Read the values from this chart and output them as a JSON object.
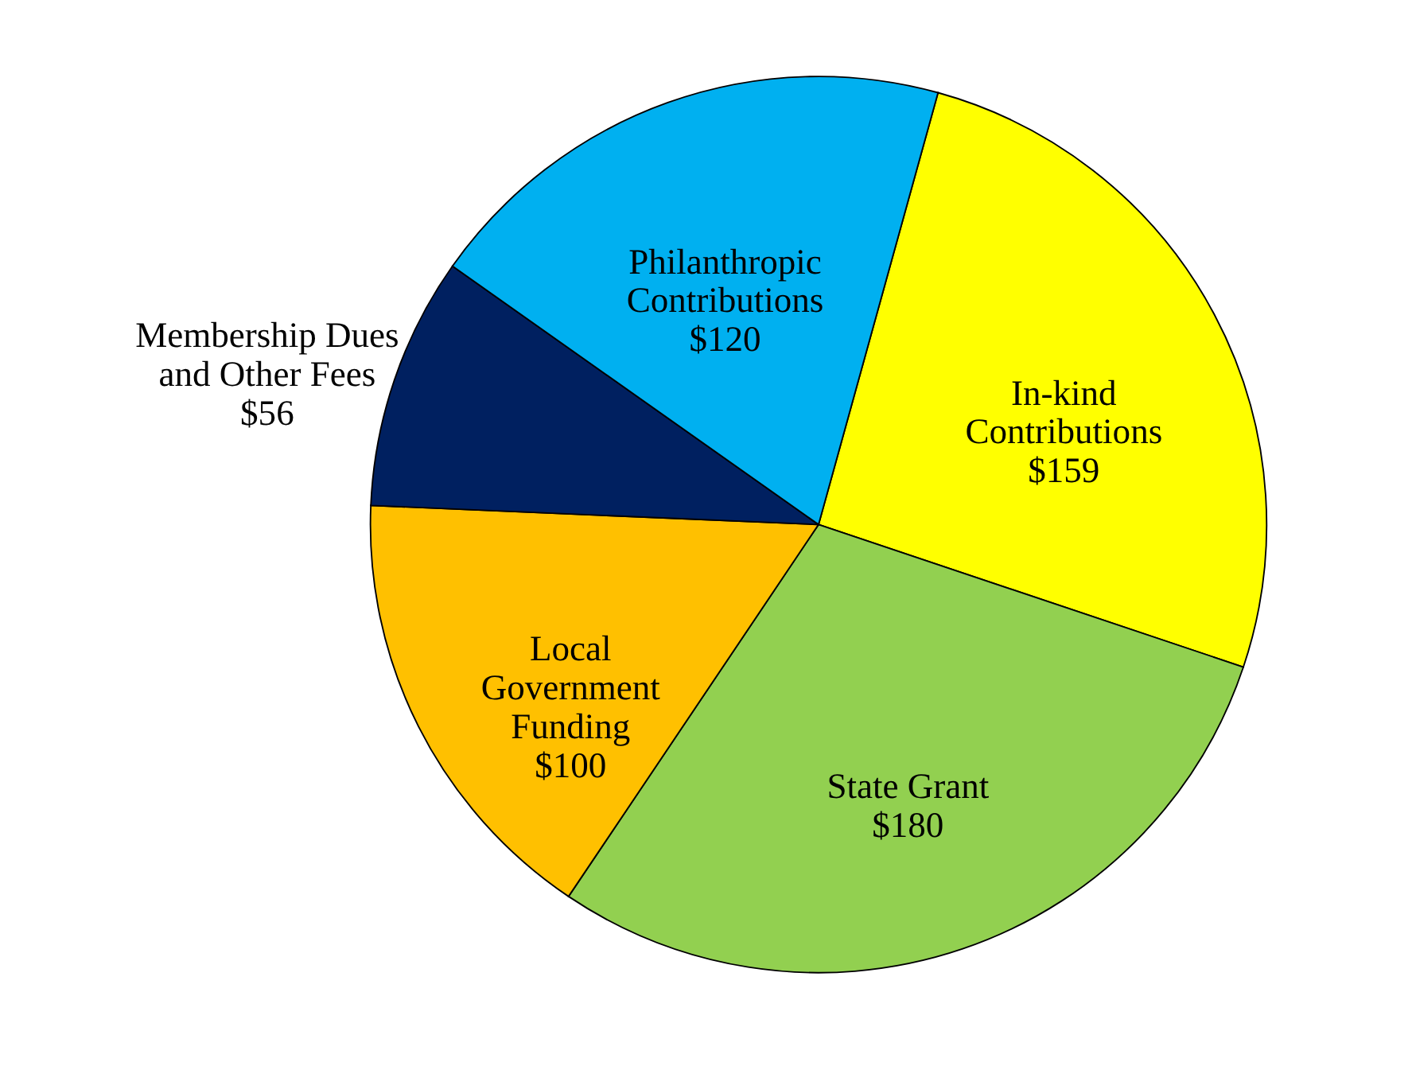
{
  "chart_data": {
    "type": "pie",
    "categories": [
      "In-kind\nContributions",
      "State Grant",
      "Local\nGovernment\nFunding",
      "Membership Dues\nand Other Fees",
      "Philanthropic\nContributions"
    ],
    "values": [
      159,
      180,
      100,
      56,
      120
    ],
    "value_labels": [
      "$159",
      "$180",
      "$100",
      "$56",
      "$120"
    ],
    "colors": [
      "#ffff00",
      "#92d050",
      "#ffc000",
      "#002060",
      "#00b0f0"
    ],
    "legend": false
  }
}
